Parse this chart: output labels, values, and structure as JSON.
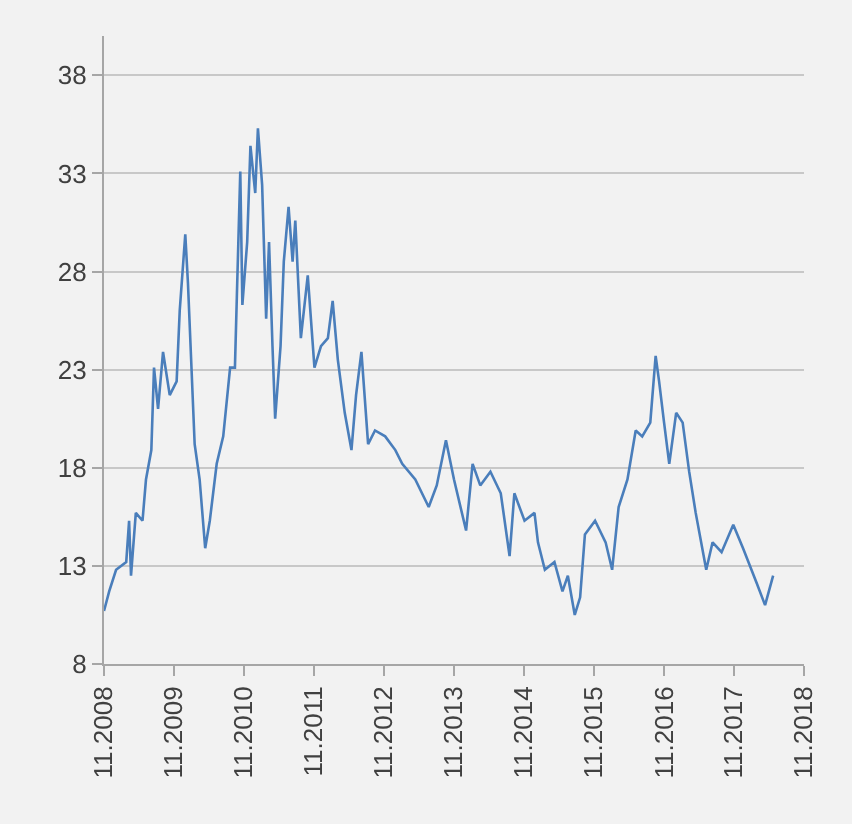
{
  "chart_data": {
    "type": "line",
    "color": "#4a7ebb",
    "grid": "y",
    "marker": "none",
    "line_style": "solid",
    "xlim": [
      "2008-11-01",
      "2018-11-01"
    ],
    "xticks": [
      {
        "value": "2008-11-01",
        "label": "11.2008"
      },
      {
        "value": "2009-11-01",
        "label": "11.2009"
      },
      {
        "value": "2010-11-01",
        "label": "11.2010"
      },
      {
        "value": "2011-11-01",
        "label": "11.2011"
      },
      {
        "value": "2012-11-01",
        "label": "11.2012"
      },
      {
        "value": "2013-11-01",
        "label": "11.2013"
      },
      {
        "value": "2014-11-01",
        "label": "11.2014"
      },
      {
        "value": "2015-11-01",
        "label": "11.2015"
      },
      {
        "value": "2016-11-01",
        "label": "11.2016"
      },
      {
        "value": "2017-11-01",
        "label": "11.2017"
      },
      {
        "value": "2018-11-01",
        "label": "11.2018"
      }
    ],
    "ylim": [
      8,
      40
    ],
    "yticks": [
      8,
      13,
      18,
      23,
      28,
      33,
      38
    ],
    "x": [
      "2008-11-01",
      "2008-11-28",
      "2009-01-03",
      "2009-02-25",
      "2009-03-12",
      "2009-03-22",
      "2009-04-16",
      "2009-05-21",
      "2009-06-08",
      "2009-07-06",
      "2009-07-20",
      "2009-08-10",
      "2009-09-05",
      "2009-10-10",
      "2009-11-15",
      "2009-12-01",
      "2009-12-30",
      "2010-01-13",
      "2010-02-17",
      "2010-03-15",
      "2010-04-13",
      "2010-05-07",
      "2010-06-12",
      "2010-07-16",
      "2010-08-21",
      "2010-09-15",
      "2010-09-25",
      "2010-10-13",
      "2010-10-24",
      "2010-11-18",
      "2010-12-05",
      "2010-12-30",
      "2011-01-13",
      "2011-02-04",
      "2011-02-25",
      "2011-03-12",
      "2011-03-30",
      "2011-04-13",
      "2011-05-11",
      "2011-05-28",
      "2011-06-22",
      "2011-07-13",
      "2011-07-27",
      "2011-08-25",
      "2011-09-30",
      "2011-11-04",
      "2011-12-08",
      "2012-01-13",
      "2012-02-07",
      "2012-03-05",
      "2012-04-10",
      "2012-05-15",
      "2012-06-08",
      "2012-07-06",
      "2012-08-10",
      "2012-09-15",
      "2012-11-07",
      "2012-12-30",
      "2013-02-04",
      "2013-04-13",
      "2013-06-22",
      "2013-08-03",
      "2013-09-20",
      "2013-11-01",
      "2014-01-03",
      "2014-02-06",
      "2014-03-18",
      "2014-05-10",
      "2014-07-03",
      "2014-08-18",
      "2014-09-12",
      "2014-11-04",
      "2014-12-26",
      "2015-01-13",
      "2015-02-18",
      "2015-04-09",
      "2015-05-21",
      "2015-06-18",
      "2015-07-24",
      "2015-08-21",
      "2015-09-15",
      "2015-11-07",
      "2016-01-01",
      "2016-02-04",
      "2016-03-09",
      "2016-04-24",
      "2016-06-06",
      "2016-07-10",
      "2016-08-21",
      "2016-09-18",
      "2016-10-06",
      "2016-11-01",
      "2016-11-28",
      "2017-01-03",
      "2017-02-06",
      "2017-03-12",
      "2017-04-15",
      "2017-06-09",
      "2017-07-12",
      "2017-08-28",
      "2017-10-28",
      "2017-12-18",
      "2018-02-28",
      "2018-04-12",
      "2018-05-24"
    ],
    "values": [
      10.7,
      11.7,
      12.8,
      13.2,
      15.3,
      12.5,
      15.7,
      15.3,
      17.4,
      18.9,
      23.1,
      21.0,
      23.9,
      21.7,
      22.4,
      26.0,
      29.9,
      27.4,
      19.2,
      17.4,
      13.9,
      15.3,
      18.2,
      19.6,
      23.1,
      23.1,
      26.7,
      33.1,
      26.3,
      29.5,
      34.4,
      32.0,
      35.3,
      32.4,
      25.6,
      29.5,
      24.2,
      20.5,
      24.2,
      28.5,
      31.3,
      28.5,
      30.6,
      24.6,
      27.8,
      23.1,
      24.2,
      24.6,
      26.5,
      23.5,
      20.8,
      18.9,
      21.7,
      23.9,
      19.2,
      19.9,
      19.6,
      18.9,
      18.2,
      17.4,
      16.0,
      17.1,
      19.4,
      17.4,
      14.8,
      18.2,
      17.1,
      17.8,
      16.7,
      13.5,
      16.7,
      15.3,
      15.7,
      14.2,
      12.8,
      13.2,
      11.7,
      12.5,
      10.5,
      11.4,
      14.6,
      15.3,
      14.2,
      12.8,
      16.0,
      17.4,
      19.9,
      19.6,
      20.3,
      23.7,
      22.4,
      20.3,
      18.2,
      20.8,
      20.3,
      17.8,
      15.7,
      12.8,
      14.2,
      13.7,
      15.1,
      13.9,
      12.1,
      11.0,
      12.5
    ]
  }
}
